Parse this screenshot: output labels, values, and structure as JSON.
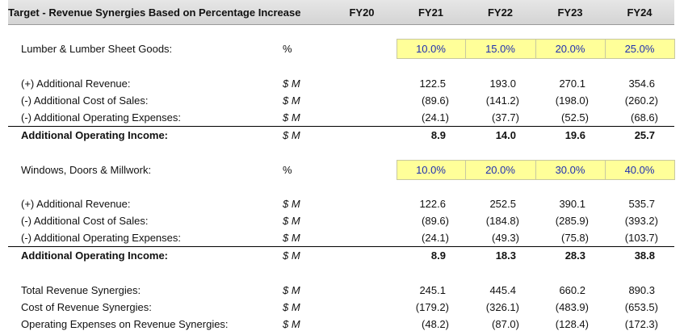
{
  "header": {
    "title": "Target - Revenue Synergies Based on Percentage Increase",
    "years": [
      "FY20",
      "FY21",
      "FY22",
      "FY23",
      "FY24"
    ]
  },
  "colors": {
    "input_fill": "#ffff99",
    "input_text": "#1f2fb0",
    "header_fill": "#d9d9d9"
  },
  "sections": [
    {
      "label": "Lumber & Lumber Sheet Goods:",
      "unit": "%",
      "pcts": [
        "10.0%",
        "15.0%",
        "20.0%",
        "25.0%"
      ],
      "rows": [
        {
          "label": "(+) Additional Revenue:",
          "unit": "$ M",
          "values": [
            "122.5",
            "193.0",
            "270.1",
            "354.6"
          ]
        },
        {
          "label": "(-) Additional Cost of Sales:",
          "unit": "$ M",
          "values": [
            "(89.6)",
            "(141.2)",
            "(198.0)",
            "(260.2)"
          ]
        },
        {
          "label": "(-) Additional Operating Expenses:",
          "unit": "$ M",
          "values": [
            "(24.1)",
            "(37.7)",
            "(52.5)",
            "(68.6)"
          ]
        }
      ],
      "total": {
        "label": "Additional Operating Income:",
        "unit": "$ M",
        "values": [
          "8.9",
          "14.0",
          "19.6",
          "25.7"
        ]
      }
    },
    {
      "label": "Windows, Doors & Millwork:",
      "unit": "%",
      "pcts": [
        "10.0%",
        "20.0%",
        "30.0%",
        "40.0%"
      ],
      "rows": [
        {
          "label": "(+) Additional Revenue:",
          "unit": "$ M",
          "values": [
            "122.6",
            "252.5",
            "390.1",
            "535.7"
          ]
        },
        {
          "label": "(-) Additional Cost of Sales:",
          "unit": "$ M",
          "values": [
            "(89.6)",
            "(184.8)",
            "(285.9)",
            "(393.2)"
          ]
        },
        {
          "label": "(-) Additional Operating Expenses:",
          "unit": "$ M",
          "values": [
            "(24.1)",
            "(49.3)",
            "(75.8)",
            "(103.7)"
          ]
        }
      ],
      "total": {
        "label": "Additional Operating Income:",
        "unit": "$ M",
        "values": [
          "8.9",
          "18.3",
          "28.3",
          "38.8"
        ]
      }
    }
  ],
  "summary": [
    {
      "label": "Total Revenue Synergies:",
      "unit": "$ M",
      "values": [
        "245.1",
        "445.4",
        "660.2",
        "890.3"
      ]
    },
    {
      "label": "Cost of Revenue Synergies:",
      "unit": "$ M",
      "values": [
        "(179.2)",
        "(326.1)",
        "(483.9)",
        "(653.5)"
      ]
    },
    {
      "label": "Operating Expenses on Revenue Synergies:",
      "unit": "$ M",
      "values": [
        "(48.2)",
        "(87.0)",
        "(128.4)",
        "(172.3)"
      ]
    }
  ]
}
